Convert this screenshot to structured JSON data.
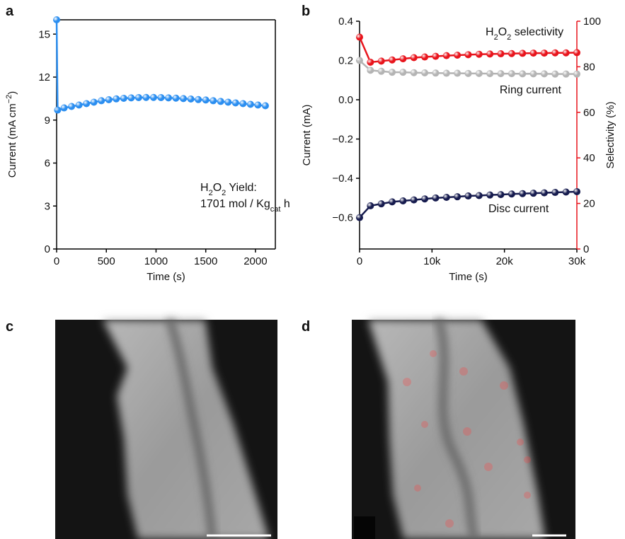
{
  "chart_data": [
    {
      "type": "line",
      "panel_label": "a",
      "x_label": "Time (s)",
      "y_label": [
        {
          "text": "Current (mA cm"
        },
        {
          "text": "−2",
          "sup": true
        },
        {
          "text": ")"
        }
      ],
      "x": [
        0,
        10,
        75,
        150,
        225,
        300,
        375,
        450,
        525,
        600,
        675,
        750,
        825,
        900,
        975,
        1050,
        1125,
        1200,
        1275,
        1350,
        1425,
        1500,
        1575,
        1650,
        1725,
        1800,
        1875,
        1950,
        2025,
        2100
      ],
      "series": [
        {
          "color": "#2b8ef0",
          "values": [
            16,
            9.7,
            9.85,
            9.95,
            10.05,
            10.15,
            10.25,
            10.35,
            10.42,
            10.48,
            10.52,
            10.55,
            10.57,
            10.58,
            10.58,
            10.57,
            10.55,
            10.53,
            10.5,
            10.47,
            10.43,
            10.4,
            10.35,
            10.3,
            10.25,
            10.2,
            10.15,
            10.1,
            10.05,
            10.0
          ]
        }
      ],
      "xlim": [
        0,
        2200
      ],
      "xticks": [
        0,
        500,
        1000,
        1500,
        2000
      ],
      "ylim": [
        0,
        16
      ],
      "yticks": [
        0,
        3,
        6,
        9,
        12,
        15
      ],
      "annotations": [
        {
          "text": [
            {
              "text": "H"
            },
            {
              "text": "2",
              "sub": true
            },
            {
              "text": "O"
            },
            {
              "text": "2",
              "sub": true
            },
            {
              "text": " Yield:"
            }
          ]
        },
        {
          "text": [
            {
              "text": "1701 mol / Kg"
            },
            {
              "text": "cat",
              "sub": true
            },
            {
              "text": " h"
            }
          ]
        }
      ]
    },
    {
      "type": "line",
      "panel_label": "b",
      "x_label": "Time (s)",
      "y_label": "Current (mA)",
      "y2_label": "Selectivity (%)",
      "y2_color": "#e8141c",
      "x": [
        0,
        1500,
        3000,
        4500,
        6000,
        7500,
        9000,
        10500,
        12000,
        13500,
        15000,
        16500,
        18000,
        19500,
        21000,
        22500,
        24000,
        25500,
        27000,
        28500,
        30000
      ],
      "series": [
        {
          "color": "#e8141c",
          "axis": "y2",
          "values": [
            93,
            82,
            82.5,
            83,
            83.5,
            84,
            84.3,
            84.6,
            84.9,
            85.1,
            85.3,
            85.5,
            85.6,
            85.7,
            85.8,
            85.9,
            86,
            86,
            86.1,
            86.1,
            86.2
          ]
        },
        {
          "color": "#b4b4b4",
          "values": [
            0.2,
            0.15,
            0.145,
            0.14,
            0.14,
            0.138,
            0.137,
            0.136,
            0.135,
            0.135,
            0.134,
            0.134,
            0.133,
            0.133,
            0.133,
            0.132,
            0.132,
            0.132,
            0.131,
            0.131,
            0.131
          ]
        },
        {
          "color": "#161b4e",
          "values": [
            -0.6,
            -0.54,
            -0.53,
            -0.52,
            -0.515,
            -0.51,
            -0.505,
            -0.5,
            -0.497,
            -0.494,
            -0.49,
            -0.488,
            -0.485,
            -0.483,
            -0.48,
            -0.478,
            -0.476,
            -0.474,
            -0.472,
            -0.47,
            -0.468
          ]
        }
      ],
      "xlim": [
        0,
        30000
      ],
      "xticks": [
        0,
        {
          "value": 10000,
          "label": "10k"
        },
        {
          "value": 20000,
          "label": "20k"
        },
        {
          "value": 30000,
          "label": "30k"
        }
      ],
      "ylim": [
        -0.76,
        0.4
      ],
      "yticks": [
        {
          "value": -0.6,
          "label": "−0.6"
        },
        {
          "value": -0.4,
          "label": "−0.4"
        },
        {
          "value": -0.2,
          "label": "−0.2"
        },
        {
          "value": 0,
          "label": "0.0"
        },
        0.2,
        0.4
      ],
      "y2lim": [
        0,
        100
      ],
      "y2ticks": [
        0,
        20,
        40,
        60,
        80,
        100
      ],
      "annotations": [
        {
          "text": [
            {
              "text": "H"
            },
            {
              "text": "2",
              "sub": true
            },
            {
              "text": "O"
            },
            {
              "text": "2",
              "sub": true
            },
            {
              "text": " selectivity"
            }
          ],
          "color": "#e8141c"
        },
        {
          "text": "Ring current"
        },
        {
          "text": "Disc current"
        }
      ]
    }
  ],
  "images": [
    {
      "panel_label": "c"
    },
    {
      "panel_label": "d"
    }
  ]
}
